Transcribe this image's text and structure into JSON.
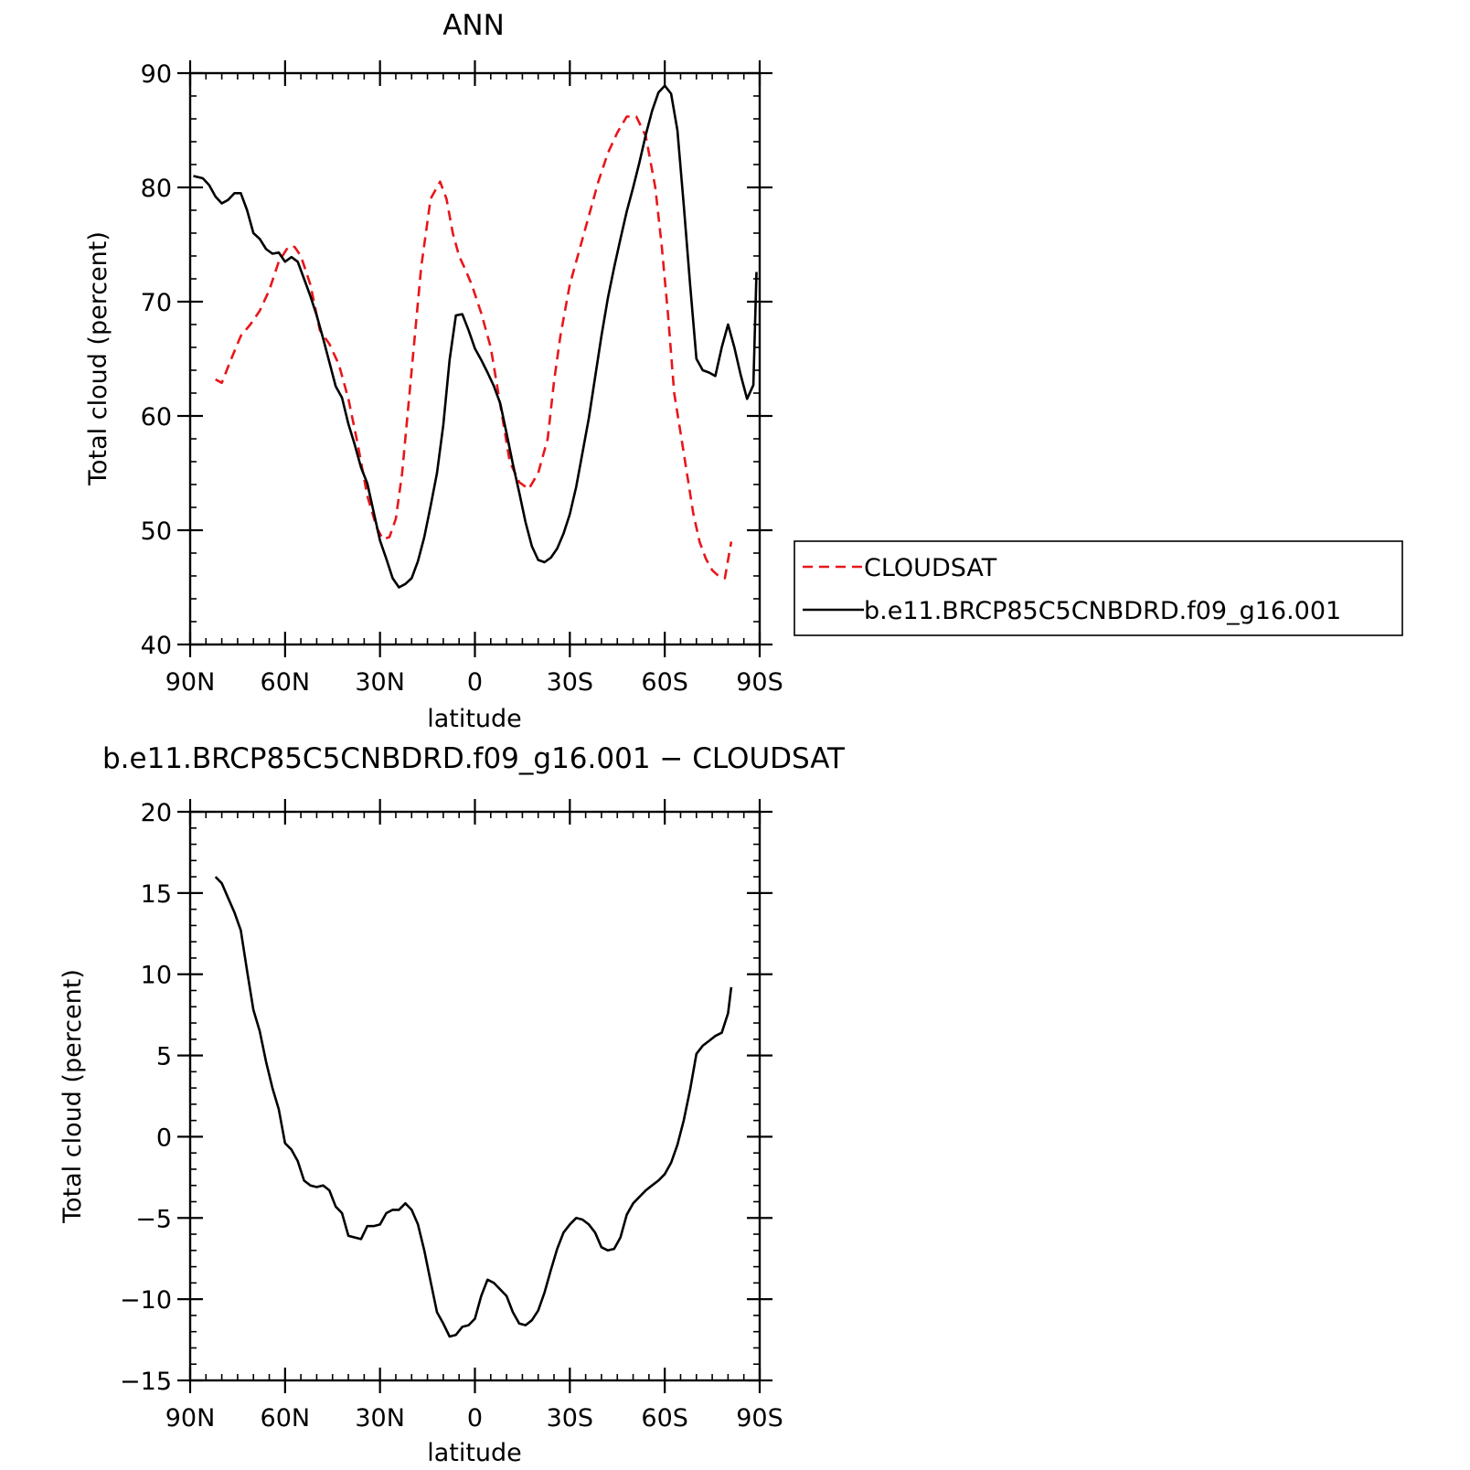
{
  "chart_data": [
    {
      "type": "line",
      "title": "ANN",
      "xlabel": "latitude",
      "ylabel": "Total cloud (percent)",
      "xlim": [
        90,
        -90
      ],
      "ylim": [
        40,
        90
      ],
      "xticks": [
        90,
        60,
        30,
        0,
        -30,
        -60,
        -90
      ],
      "xtick_labels": [
        "90N",
        "60N",
        "30N",
        "0",
        "30S",
        "60S",
        "90S"
      ],
      "yticks": [
        40,
        50,
        60,
        70,
        80,
        90
      ],
      "ytick_labels": [
        "40",
        "50",
        "60",
        "70",
        "80",
        "90"
      ],
      "grid": false,
      "legend_position": "right",
      "series": [
        {
          "name": "CLOUDSAT",
          "color": "#e8161b",
          "style": "dashed",
          "x": [
            82,
            80,
            77,
            74,
            71,
            68,
            65,
            62,
            59,
            57,
            55,
            52,
            49,
            46,
            43,
            40,
            37,
            34,
            31,
            29,
            27,
            25,
            23,
            20,
            17,
            14,
            11,
            9,
            7,
            5,
            3,
            1,
            -2,
            -5,
            -8,
            -11,
            -14,
            -17,
            -20,
            -23,
            -25,
            -27,
            -30,
            -33,
            -36,
            -39,
            -42,
            -45,
            -48,
            -51,
            -54,
            -57,
            -59,
            -61,
            -63,
            -65,
            -67,
            -69,
            -71,
            -73,
            -75,
            -77,
            -79,
            -81
          ],
          "y": [
            63.2,
            62.9,
            65.0,
            67.0,
            68.0,
            69.2,
            71.0,
            73.5,
            74.8,
            74.8,
            74.0,
            71.5,
            67.5,
            66.3,
            64.5,
            61.5,
            57.5,
            53.0,
            50.2,
            49.2,
            49.4,
            51.0,
            55.0,
            64.0,
            73.0,
            79.0,
            80.5,
            79.0,
            76.0,
            74.0,
            72.8,
            71.5,
            69.0,
            66.0,
            61.0,
            56.0,
            54.2,
            53.6,
            55.0,
            58.0,
            63.0,
            67.0,
            71.5,
            74.5,
            77.5,
            80.5,
            83.0,
            84.8,
            86.2,
            86.2,
            84.5,
            80.0,
            75.0,
            69.0,
            62.0,
            58.5,
            55.0,
            51.5,
            49.0,
            47.5,
            46.5,
            46.0,
            45.8,
            49.0
          ]
        },
        {
          "name": "b.e11.BRCP85C5CNBDRD.f09_g16.001",
          "color": "#000000",
          "style": "solid",
          "x": [
            89,
            86,
            84,
            82,
            80,
            78,
            76,
            74,
            72,
            70,
            68,
            66,
            64,
            62,
            60,
            58,
            56,
            54,
            52,
            50,
            48,
            46,
            44,
            42,
            40,
            38,
            36,
            34,
            32,
            30,
            28,
            26,
            24,
            22,
            20,
            18,
            16,
            14,
            12,
            10,
            8,
            6,
            4,
            2,
            0,
            -2,
            -4,
            -6,
            -8,
            -10,
            -12,
            -14,
            -16,
            -18,
            -20,
            -22,
            -24,
            -26,
            -28,
            -30,
            -32,
            -34,
            -36,
            -38,
            -40,
            -42,
            -44,
            -46,
            -48,
            -50,
            -52,
            -54,
            -56,
            -58,
            -60,
            -62,
            -64,
            -66,
            -68,
            -70,
            -72,
            -74,
            -76,
            -78,
            -80,
            -82,
            -84,
            -86,
            -88,
            -89
          ],
          "y": [
            81.0,
            80.8,
            80.2,
            79.2,
            78.6,
            78.9,
            79.5,
            79.5,
            78.0,
            76.0,
            75.5,
            74.6,
            74.2,
            74.3,
            73.5,
            73.9,
            73.5,
            72.0,
            70.5,
            68.8,
            66.8,
            64.7,
            62.6,
            61.6,
            59.3,
            57.5,
            55.5,
            54.1,
            51.6,
            49.1,
            47.5,
            45.8,
            45.0,
            45.3,
            45.8,
            47.3,
            49.4,
            52.1,
            55.0,
            59.2,
            64.9,
            68.8,
            68.9,
            67.5,
            65.9,
            64.9,
            63.8,
            62.6,
            61.1,
            58.5,
            55.8,
            53.3,
            50.7,
            48.6,
            47.4,
            47.2,
            47.6,
            48.4,
            49.7,
            51.4,
            53.8,
            56.8,
            59.8,
            63.4,
            67.0,
            70.3,
            73.0,
            75.5,
            77.9,
            80.0,
            82.2,
            84.6,
            86.7,
            88.3,
            88.9,
            88.2,
            85.0,
            78.5,
            71.5,
            65.0,
            64.0,
            63.8,
            63.5,
            66.0,
            68.0,
            66.0,
            63.6,
            61.5,
            62.7,
            72.6
          ]
        }
      ]
    },
    {
      "type": "line",
      "title": "b.e11.BRCP85C5CNBDRD.f09_g16.001 − CLOUDSAT",
      "xlabel": "latitude",
      "ylabel": "Total cloud (percent)",
      "xlim": [
        90,
        -90
      ],
      "ylim": [
        -15,
        20
      ],
      "xticks": [
        90,
        60,
        30,
        0,
        -30,
        -60,
        -90
      ],
      "xtick_labels": [
        "90N",
        "60N",
        "30N",
        "0",
        "30S",
        "60S",
        "90S"
      ],
      "yticks": [
        -15,
        -10,
        -5,
        0,
        5,
        10,
        15,
        20
      ],
      "ytick_labels": [
        "−15",
        "−10",
        "−5",
        "0",
        "5",
        "10",
        "15",
        "20"
      ],
      "grid": false,
      "series": [
        {
          "color": "#000000",
          "style": "solid",
          "x": [
            82,
            80,
            78,
            76,
            74,
            72,
            70,
            68,
            66,
            64,
            62,
            60,
            58,
            56,
            54,
            52,
            50,
            48,
            46,
            44,
            42,
            40,
            38,
            36,
            34,
            32,
            30,
            28,
            26,
            24,
            22,
            20,
            18,
            16,
            14,
            12,
            10,
            8,
            6,
            4,
            2,
            0,
            -2,
            -4,
            -6,
            -8,
            -10,
            -12,
            -14,
            -16,
            -18,
            -20,
            -22,
            -24,
            -26,
            -28,
            -30,
            -32,
            -34,
            -36,
            -38,
            -40,
            -42,
            -44,
            -46,
            -48,
            -50,
            -52,
            -54,
            -56,
            -58,
            -60,
            -62,
            -64,
            -66,
            -68,
            -70,
            -72,
            -74,
            -76,
            -78,
            -80,
            -81
          ],
          "y": [
            16.0,
            15.6,
            14.7,
            13.8,
            12.7,
            10.2,
            7.8,
            6.5,
            4.6,
            3.0,
            1.7,
            -0.4,
            -0.8,
            -1.5,
            -2.7,
            -3.0,
            -3.1,
            -3.0,
            -3.3,
            -4.3,
            -4.7,
            -6.1,
            -6.2,
            -6.3,
            -5.5,
            -5.5,
            -5.4,
            -4.7,
            -4.5,
            -4.5,
            -4.1,
            -4.5,
            -5.4,
            -7.0,
            -8.9,
            -10.8,
            -11.5,
            -12.3,
            -12.2,
            -11.7,
            -11.6,
            -11.2,
            -9.8,
            -8.8,
            -9.0,
            -9.4,
            -9.8,
            -10.8,
            -11.5,
            -11.6,
            -11.3,
            -10.7,
            -9.6,
            -8.2,
            -6.9,
            -5.9,
            -5.4,
            -5.0,
            -5.1,
            -5.4,
            -5.9,
            -6.8,
            -7.0,
            -6.9,
            -6.2,
            -4.8,
            -4.1,
            -3.7,
            -3.3,
            -3.0,
            -2.7,
            -2.3,
            -1.6,
            -0.5,
            1.0,
            2.9,
            5.1,
            5.6,
            5.9,
            6.2,
            6.4,
            7.6,
            9.2
          ]
        }
      ]
    }
  ]
}
